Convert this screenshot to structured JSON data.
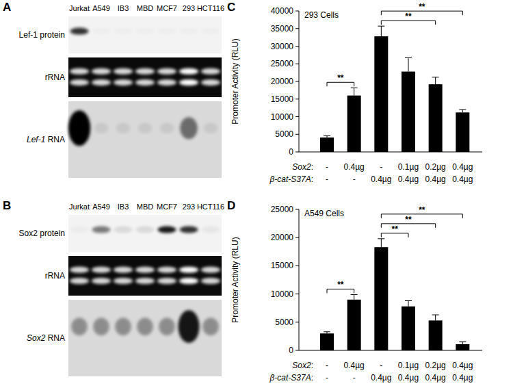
{
  "blots": [
    {
      "panel": "A",
      "lanes": [
        "Jurkat",
        "A549",
        "IB3",
        "MBD",
        "MCF7",
        "293",
        "HCT116"
      ],
      "rows": [
        {
          "label": "Lef-1 protein",
          "style": "protein",
          "signal": [
            0.8,
            0.02,
            0.02,
            0.02,
            0.02,
            0.02,
            0.02
          ]
        },
        {
          "label": "rRNA",
          "style": "rrna",
          "signal": [
            0.85,
            0.85,
            0.85,
            0.85,
            0.85,
            1,
            0.85
          ]
        },
        {
          "label": "Lef-1 RNA",
          "style": "rna",
          "italic": "Lef-1",
          "signal": [
            1,
            0.08,
            0.08,
            0.08,
            0.08,
            0.5,
            0.08
          ]
        }
      ]
    },
    {
      "panel": "B",
      "lanes": [
        "Jurkat",
        "A549",
        "IB3",
        "MBD",
        "MCF7",
        "293",
        "HCT116"
      ],
      "rows": [
        {
          "label": "Sox2 protein",
          "style": "protein",
          "signal": [
            0.03,
            0.5,
            0.1,
            0.1,
            0.9,
            0.8,
            0.05
          ]
        },
        {
          "label": "rRNA",
          "style": "rrna",
          "signal": [
            0.85,
            0.85,
            0.85,
            0.85,
            0.85,
            1,
            0.85
          ]
        },
        {
          "label": "Sox2 RNA",
          "style": "rna",
          "italic": "Sox2",
          "signal": [
            0.35,
            0.35,
            0.35,
            0.35,
            0.35,
            0.9,
            0.35
          ]
        }
      ]
    }
  ],
  "chart_data": [
    {
      "type": "bar",
      "panel": "C",
      "title": "293 Cells",
      "y_label": "Promoter Activity (RLU)",
      "categories": [
        null,
        null,
        null,
        null,
        null,
        null
      ],
      "category_rows": [
        {
          "label": "Sox2:",
          "italic": "Sox2",
          "values": [
            "-",
            "0.4µg",
            "-",
            "0.1µg",
            "0.2µg",
            "0.4µg"
          ]
        },
        {
          "label": "β-cat-S37A:",
          "italic": "β-cat-S37A",
          "values": [
            "-",
            "-",
            "0.4µg",
            "0.4µg",
            "0.4µg",
            "0.4µg"
          ]
        }
      ],
      "values": [
        4100,
        16000,
        32800,
        22800,
        19200,
        11200
      ],
      "errors": [
        500,
        2200,
        2900,
        3900,
        2000,
        800
      ],
      "color": "#000000",
      "ylim": [
        0,
        40000
      ],
      "yticks": [
        0,
        5000,
        10000,
        15000,
        20000,
        25000,
        30000,
        35000,
        40000
      ],
      "annotations": [
        {
          "text": "**",
          "from": 0,
          "to": 1
        },
        {
          "text": "**",
          "from": 2,
          "to": 4
        },
        {
          "text": "**",
          "from": 2,
          "to": 5
        }
      ]
    },
    {
      "type": "bar",
      "panel": "D",
      "title": "A549 Cells",
      "y_label": "Promoter Activity (RLU)",
      "categories": [
        null,
        null,
        null,
        null,
        null,
        null
      ],
      "category_rows": [
        {
          "label": "Sox2:",
          "italic": "Sox2",
          "values": [
            "-",
            "0.4µg",
            "-",
            "0.1µg",
            "0.2µg",
            "0.4µg"
          ]
        },
        {
          "label": "β-cat-S37A:",
          "italic": "β-cat-S37A",
          "values": [
            "-",
            "-",
            "0.4µg",
            "0.4µg",
            "0.4µg",
            "0.4µg"
          ]
        }
      ],
      "values": [
        3000,
        9000,
        18300,
        7800,
        5300,
        1100
      ],
      "errors": [
        300,
        900,
        1500,
        1000,
        1000,
        400
      ],
      "color": "#000000",
      "ylim": [
        0,
        25000
      ],
      "yticks": [
        0,
        5000,
        10000,
        15000,
        20000,
        25000
      ],
      "annotations": [
        {
          "text": "**",
          "from": 0,
          "to": 1
        },
        {
          "text": "**",
          "from": 2,
          "to": 3
        },
        {
          "text": "**",
          "from": 2,
          "to": 4
        },
        {
          "text": "**",
          "from": 2,
          "to": 5
        }
      ]
    }
  ]
}
